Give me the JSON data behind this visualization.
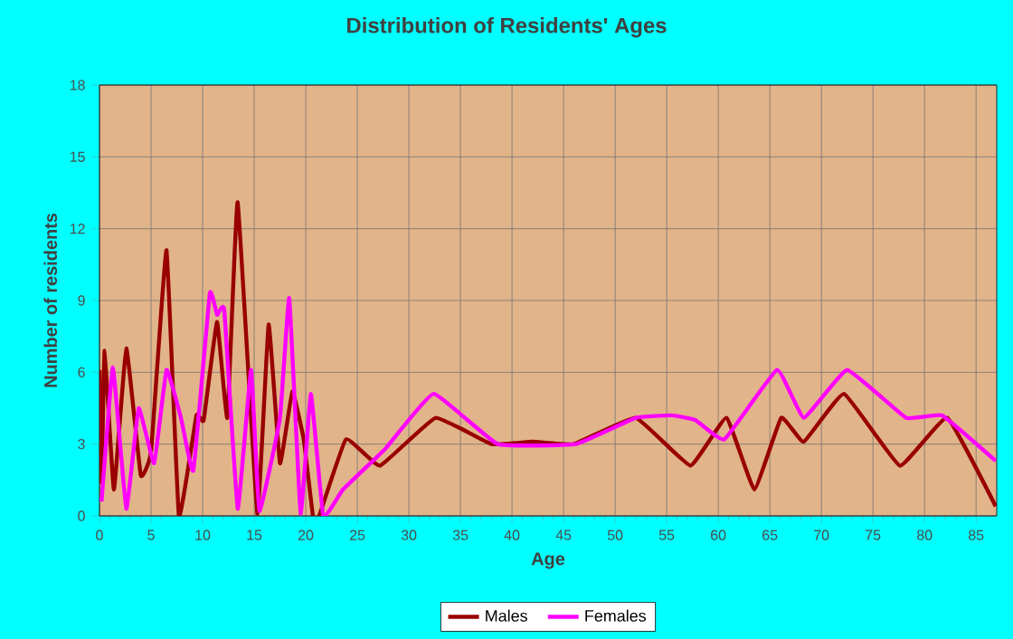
{
  "chart_data": {
    "type": "line",
    "title": "Distribution of Residents' Ages",
    "xlabel": "Age",
    "ylabel": "Number of residents",
    "xlim": [
      0,
      87
    ],
    "xticks": [
      0,
      5,
      10,
      15,
      20,
      25,
      30,
      35,
      40,
      45,
      50,
      55,
      60,
      65,
      70,
      75,
      80,
      85
    ],
    "ylim": [
      0,
      18
    ],
    "yticks": [
      0,
      3,
      6,
      9,
      12,
      15,
      18
    ],
    "grid": true,
    "legend": "bottom",
    "series": [
      {
        "name": "Males",
        "color": "#990000",
        "x": [
          0,
          0.2,
          0.5,
          1.4,
          2.6,
          4.0,
          5,
          6.5,
          7.7,
          9.4,
          10.1,
          11.4,
          12.4,
          13.4,
          15.3,
          16.4,
          17.5,
          18.7,
          19.8,
          20.7,
          21.3,
          23.9,
          27.2,
          32.6,
          38,
          42,
          46,
          52,
          57.3,
          60.8,
          63.5,
          66.1,
          68.3,
          72.2,
          77.6,
          82.2,
          86.9
        ],
        "values": [
          6.1,
          1.4,
          6.9,
          1.1,
          7.0,
          1.7,
          2.7,
          11.1,
          0,
          4.2,
          4.0,
          8.1,
          4.1,
          13.1,
          0.1,
          8.0,
          2.2,
          5.2,
          3.2,
          0,
          0,
          3.2,
          2.1,
          4.1,
          3.0,
          3.1,
          3.0,
          4.1,
          2.1,
          4.1,
          1.1,
          4.1,
          3.1,
          5.1,
          2.1,
          4.1,
          0.4
        ]
      },
      {
        "name": "Females",
        "color": "#ff00ff",
        "x": [
          0.2,
          1.3,
          2.6,
          3.8,
          5.3,
          6.5,
          7.9,
          9.1,
          10.7,
          11.4,
          12.1,
          13.4,
          14.7,
          15.5,
          17.5,
          18.4,
          19.5,
          20.5,
          21.7,
          23.6,
          27.7,
          32.4,
          38.6,
          46.2,
          52,
          55.5,
          57.8,
          60.6,
          65.7,
          68.3,
          72.5,
          78.2,
          81.7,
          86.9
        ],
        "values": [
          0.6,
          6.2,
          0.3,
          4.5,
          2.2,
          6.1,
          4.1,
          1.9,
          9.3,
          8.4,
          8.6,
          0.3,
          6.1,
          0.2,
          4.1,
          9.1,
          0.1,
          5.1,
          0,
          1.1,
          2.8,
          5.1,
          3.0,
          3.0,
          4.1,
          4.2,
          4.0,
          3.2,
          6.1,
          4.1,
          6.1,
          4.1,
          4.2,
          2.3
        ]
      }
    ]
  }
}
